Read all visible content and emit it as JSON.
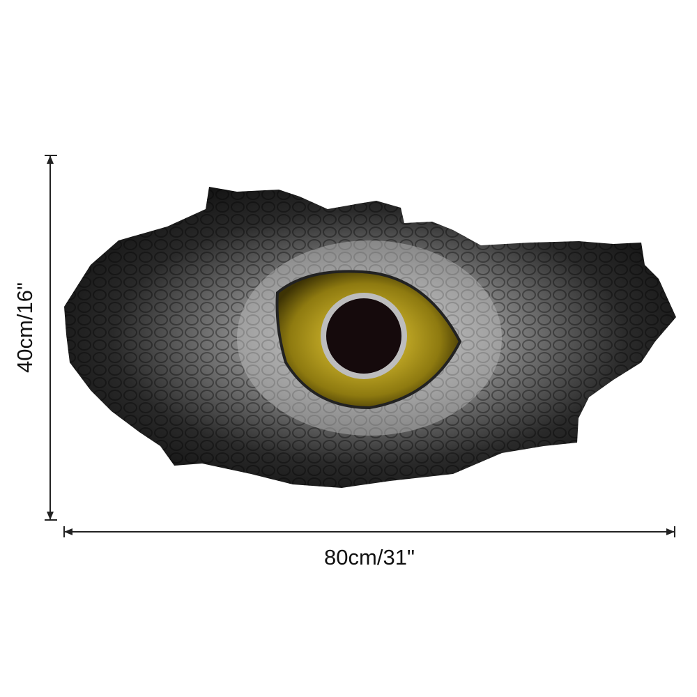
{
  "dimensions": {
    "height": {
      "label": "40cm/16\""
    },
    "width": {
      "label": "80cm/31\""
    }
  }
}
